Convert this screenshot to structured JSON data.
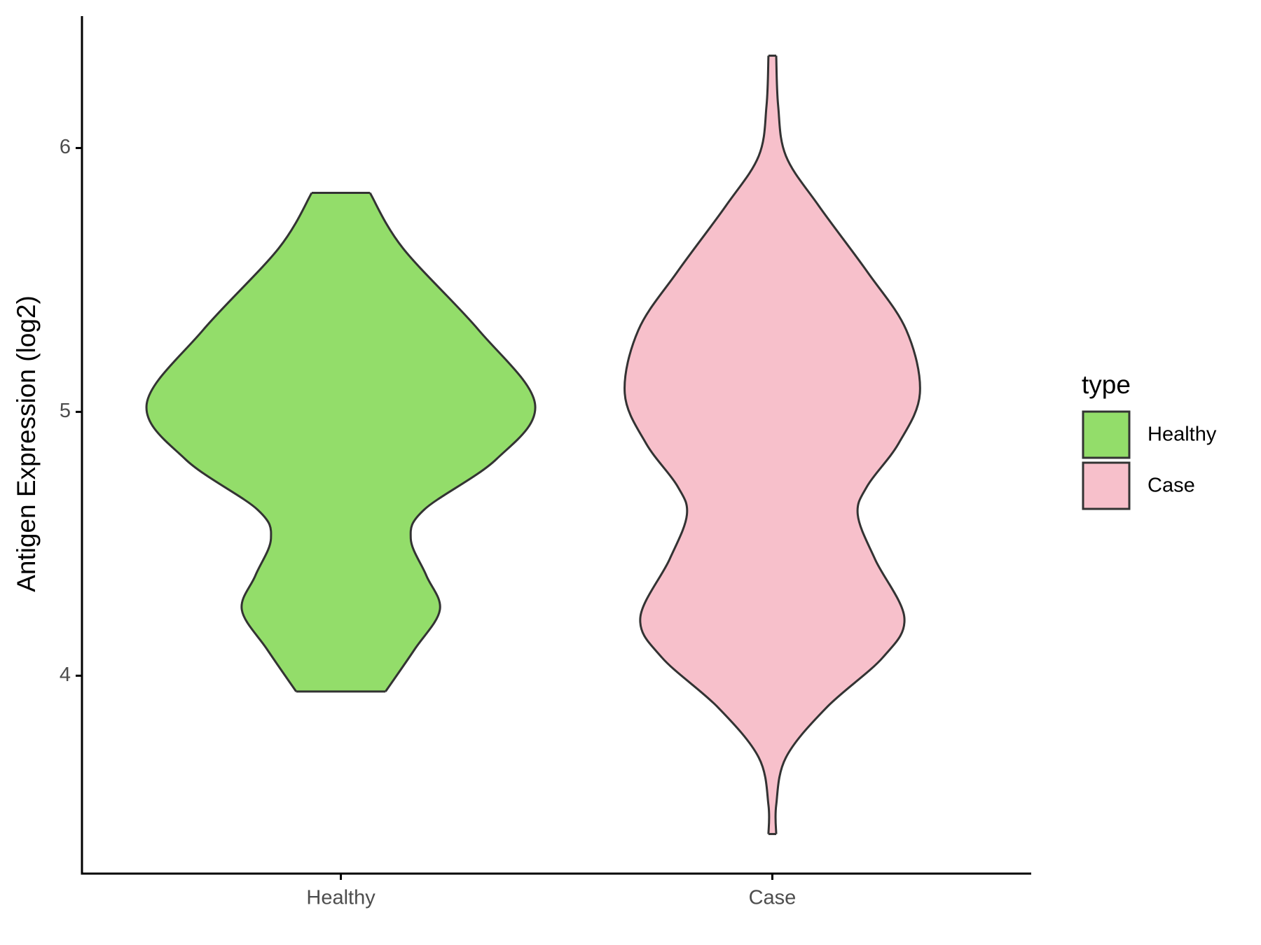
{
  "chart_data": {
    "type": "violin",
    "y_label": "Antigen Expression (log2)",
    "legend_title": "type",
    "legend_position": "right",
    "categories": [
      "Healthy",
      "Case"
    ],
    "ylim": [
      3.25,
      6.5
    ],
    "yticks": [
      4,
      5,
      6
    ],
    "series": [
      {
        "name": "Healthy",
        "color": "#93dd6a",
        "y": [
          5.83,
          5.62,
          5.31,
          5.03,
          4.82,
          4.63,
          4.52,
          4.38,
          4.25,
          4.1,
          3.94
        ],
        "widths": [
          0.15,
          0.32,
          0.71,
          1.0,
          0.8,
          0.43,
          0.36,
          0.44,
          0.51,
          0.38,
          0.23
        ]
      },
      {
        "name": "Case",
        "color": "#f7c0cb",
        "y": [
          6.35,
          6.16,
          5.97,
          5.78,
          5.53,
          5.31,
          5.07,
          4.88,
          4.72,
          4.61,
          4.44,
          4.22,
          4.07,
          3.88,
          3.69,
          3.51,
          3.4
        ],
        "widths": [
          0.02,
          0.03,
          0.07,
          0.24,
          0.49,
          0.69,
          0.76,
          0.65,
          0.49,
          0.44,
          0.53,
          0.68,
          0.57,
          0.28,
          0.07,
          0.02,
          0.02
        ]
      }
    ]
  }
}
